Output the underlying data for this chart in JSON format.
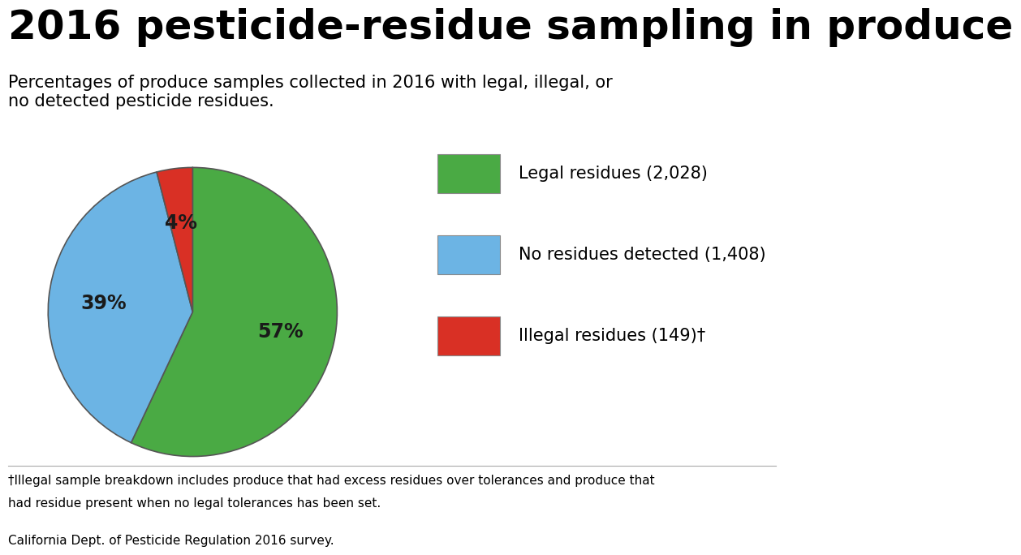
{
  "title": "2016 pesticide-residue sampling in produce",
  "subtitle": "Percentages of produce samples collected in 2016 with legal, illegal, or\nno detected pesticide residues.",
  "slices": [
    57,
    39,
    4
  ],
  "labels": [
    "57%",
    "39%",
    "4%"
  ],
  "colors": [
    "#4aaa44",
    "#6cb4e4",
    "#d93025"
  ],
  "legend_labels": [
    "Legal residues (2,028)",
    "No residues detected (1,408)",
    "Illegal residues (149)†"
  ],
  "legend_colors": [
    "#4aaa44",
    "#6cb4e4",
    "#d93025"
  ],
  "footnote1": "†Illegal sample breakdown includes produce that had excess residues over tolerances and produce that",
  "footnote2": "had residue present when no legal tolerances has been set.",
  "footnote3": "California Dept. of Pesticide Regulation 2016 survey.",
  "background_color": "#ffffff",
  "startangle": 90,
  "pie_label_fontsize": 17,
  "title_fontsize": 36,
  "subtitle_fontsize": 15,
  "legend_fontsize": 15,
  "footnote_fontsize": 11,
  "pie_label_color": "#1a1a1a",
  "legend_box_edge_color": "#888888"
}
